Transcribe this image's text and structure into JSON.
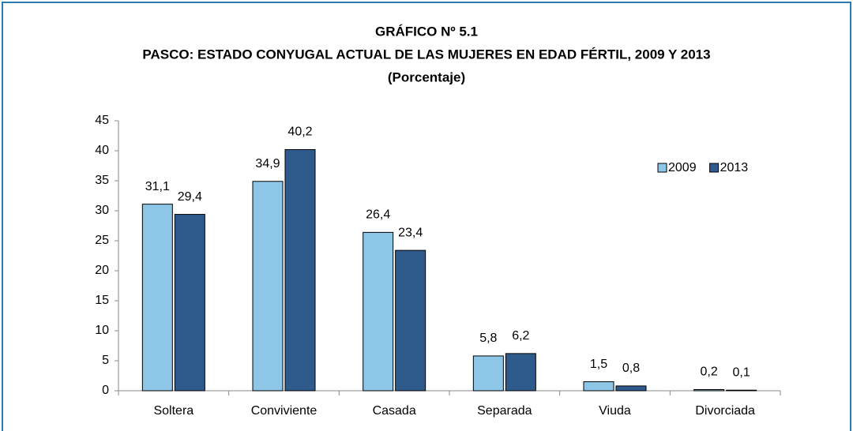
{
  "chart_data": {
    "type": "bar",
    "title": "GRÁFICO Nº 5.1",
    "subtitle": "PASCO: ESTADO CONYUGAL ACTUAL DE LAS MUJERES EN EDAD FÉRTIL, 2009 Y 2013",
    "unit_label": "(Porcentaje)",
    "categories": [
      "Soltera",
      "Conviviente",
      "Casada",
      "Separada",
      "Viuda",
      "Divorciada"
    ],
    "series": [
      {
        "name": "2009",
        "color": "#8ec6e8",
        "values": [
          31.1,
          34.9,
          26.4,
          5.8,
          1.5,
          0.2
        ],
        "value_labels": [
          "31,1",
          "34,9",
          "26,4",
          "5,8",
          "1,5",
          "0,2"
        ]
      },
      {
        "name": "2013",
        "color": "#2f5a8c",
        "values": [
          29.4,
          40.2,
          23.4,
          6.2,
          0.8,
          0.1
        ],
        "value_labels": [
          "29,4",
          "40,2",
          "23,4",
          "6,2",
          "0,8",
          "0,1"
        ]
      }
    ],
    "ylim": [
      0,
      45
    ],
    "yticks": [
      0,
      5,
      10,
      15,
      20,
      25,
      30,
      35,
      40,
      45
    ],
    "grid": false,
    "legend": "upper right"
  }
}
